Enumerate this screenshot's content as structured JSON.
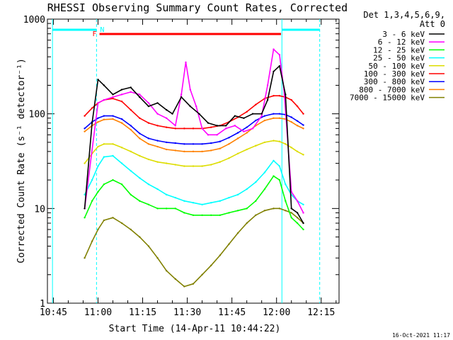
{
  "chart_data": {
    "type": "line",
    "title": "RHESSI Observing Summary Count Rates, Corrected",
    "xlabel": "Start Time (14-Apr-11 10:44:22)",
    "ylabel": "Corrected Count Rate (s⁻¹ detector⁻¹)",
    "y_scale": "log",
    "ylim": [
      1,
      1000
    ],
    "xlim_minutes": [
      -2,
      96
    ],
    "x_ticks": [
      {
        "label": "10:45",
        "minute": 0
      },
      {
        "label": "11:00",
        "minute": 15
      },
      {
        "label": "11:15",
        "minute": 30
      },
      {
        "label": "11:30",
        "minute": 45
      },
      {
        "label": "11:45",
        "minute": 60
      },
      {
        "label": "12:00",
        "minute": 75
      },
      {
        "label": "12:15",
        "minute": 90
      }
    ],
    "y_ticks": [
      {
        "label": "1",
        "value": 1
      },
      {
        "label": "10",
        "value": 10
      },
      {
        "label": "100",
        "value": 100
      },
      {
        "label": "1000",
        "value": 1000
      }
    ],
    "legend": {
      "position": "right",
      "header": [
        "Det 1,3,4,5,6,9,",
        "Att 0"
      ]
    },
    "series": [
      {
        "name": "3 - 6 keV",
        "color": "#000000",
        "x": [
          10.5,
          13.0,
          15.0,
          17.0,
          20.0,
          23.0,
          26.0,
          29.0,
          32.0,
          35.0,
          38.0,
          40.0,
          43.0,
          46.0,
          49.0,
          52.0,
          55.0,
          58.0,
          61.0,
          64.0,
          67.0,
          70.0,
          72.0,
          74.0,
          76.0,
          78.0,
          80.0,
          82.0,
          84.0
        ],
        "y": [
          10,
          80,
          230,
          200,
          160,
          180,
          190,
          150,
          120,
          130,
          110,
          100,
          150,
          120,
          100,
          80,
          75,
          75,
          95,
          90,
          100,
          100,
          140,
          280,
          320,
          160,
          10,
          9,
          7
        ]
      },
      {
        "name": "6 - 12 keV",
        "color": "#ff00ff",
        "x": [
          10.5,
          15.0,
          17.0,
          20.0,
          23.0,
          26.0,
          29.0,
          32.0,
          35.0,
          38.0,
          41.0,
          43.0,
          44.5,
          46.0,
          48.0,
          50.0,
          52.0,
          55.0,
          58.0,
          61.0,
          64.0,
          67.0,
          70.0,
          72.0,
          74.0,
          76.0,
          77.5,
          80.0,
          82.0,
          84.0
        ],
        "y": [
          10,
          130,
          140,
          150,
          160,
          170,
          160,
          130,
          100,
          90,
          75,
          160,
          350,
          180,
          120,
          70,
          60,
          60,
          70,
          75,
          65,
          70,
          95,
          200,
          480,
          420,
          180,
          15,
          12,
          9
        ]
      },
      {
        "name": "12 - 25 keV",
        "color": "#00ff00",
        "x": [
          10.5,
          13.0,
          15.0,
          17.0,
          20.0,
          23.0,
          26.0,
          29.0,
          32.0,
          35.0,
          38.0,
          41.0,
          44.0,
          47.0,
          50.0,
          53.0,
          56.0,
          59.0,
          62.0,
          65.0,
          68.0,
          71.0,
          74.0,
          76.0,
          78.0,
          80.0,
          82.0,
          84.0
        ],
        "y": [
          8,
          12,
          15,
          18,
          20,
          18,
          14,
          12,
          11,
          10,
          10,
          10,
          9,
          8.5,
          8.5,
          8.5,
          8.5,
          9,
          9.5,
          10,
          12,
          16,
          22,
          20,
          12,
          8,
          7,
          6
        ]
      },
      {
        "name": "25 - 50 keV",
        "color": "#00ffff",
        "x": [
          10.5,
          13.0,
          15.0,
          17.0,
          20.0,
          23.0,
          26.0,
          29.0,
          32.0,
          35.0,
          38.0,
          41.0,
          44.0,
          47.0,
          50.0,
          53.0,
          56.0,
          59.0,
          62.0,
          65.0,
          68.0,
          71.0,
          74.0,
          76.0,
          78.0,
          80.0,
          82.0,
          84.0
        ],
        "y": [
          14,
          20,
          28,
          35,
          36,
          30,
          25,
          21,
          18,
          16,
          14,
          13,
          12,
          11.5,
          11,
          11.5,
          12,
          13,
          14,
          16,
          19,
          24,
          32,
          28,
          18,
          14,
          12,
          11
        ]
      },
      {
        "name": "50 - 100 keV",
        "color": "#dddd00",
        "x": [
          10.5,
          13.0,
          15.0,
          17.0,
          20.0,
          23.0,
          26.0,
          29.0,
          32.0,
          35.0,
          38.0,
          41.0,
          44.0,
          47.0,
          50.0,
          53.0,
          56.0,
          59.0,
          62.0,
          65.0,
          68.0,
          71.0,
          74.0,
          76.0,
          78.0,
          80.0,
          82.0,
          84.0
        ],
        "y": [
          30,
          38,
          45,
          48,
          48,
          44,
          40,
          36,
          33,
          31,
          30,
          29,
          28,
          28,
          28,
          29,
          31,
          34,
          38,
          42,
          46,
          50,
          52,
          51,
          48,
          44,
          40,
          37
        ]
      },
      {
        "name": "100 - 300 keV",
        "color": "#ff0000",
        "x": [
          10.5,
          13.0,
          15.0,
          17.0,
          20.0,
          23.0,
          26.0,
          29.0,
          32.0,
          35.0,
          38.0,
          41.0,
          44.0,
          47.0,
          50.0,
          53.0,
          56.0,
          59.0,
          62.0,
          65.0,
          68.0,
          71.0,
          74.0,
          76.0,
          78.0,
          80.0,
          82.0,
          84.0
        ],
        "y": [
          95,
          115,
          130,
          140,
          145,
          135,
          110,
          90,
          80,
          75,
          72,
          70,
          70,
          70,
          70,
          72,
          75,
          82,
          92,
          105,
          125,
          145,
          155,
          155,
          150,
          140,
          120,
          100
        ]
      },
      {
        "name": "300 - 800 keV",
        "color": "#0000ff",
        "x": [
          10.5,
          13.0,
          15.0,
          17.0,
          20.0,
          23.0,
          26.0,
          29.0,
          32.0,
          35.0,
          38.0,
          41.0,
          44.0,
          47.0,
          50.0,
          53.0,
          56.0,
          59.0,
          62.0,
          65.0,
          68.0,
          71.0,
          74.0,
          76.0,
          78.0,
          80.0,
          82.0,
          84.0
        ],
        "y": [
          70,
          82,
          90,
          95,
          95,
          88,
          75,
          62,
          55,
          52,
          50,
          49,
          48,
          48,
          48,
          49,
          51,
          56,
          63,
          72,
          85,
          95,
          100,
          100,
          98,
          92,
          84,
          76
        ]
      },
      {
        "name": "800 - 7000 keV",
        "color": "#ff8000",
        "x": [
          10.5,
          13.0,
          15.0,
          17.0,
          20.0,
          23.0,
          26.0,
          29.0,
          32.0,
          35.0,
          38.0,
          41.0,
          44.0,
          47.0,
          50.0,
          53.0,
          56.0,
          59.0,
          62.0,
          65.0,
          68.0,
          71.0,
          74.0,
          76.0,
          78.0,
          80.0,
          82.0,
          84.0
        ],
        "y": [
          65,
          75,
          82,
          87,
          88,
          80,
          68,
          55,
          48,
          45,
          42,
          41,
          40,
          40,
          40,
          41,
          43,
          48,
          55,
          63,
          75,
          85,
          90,
          90,
          88,
          82,
          75,
          70
        ]
      },
      {
        "name": "7000 - 15000 keV",
        "color": "#808000",
        "x": [
          10.5,
          13.0,
          15.0,
          17.0,
          20.0,
          23.0,
          26.0,
          29.0,
          32.0,
          35.0,
          38.0,
          41.0,
          44.0,
          47.0,
          50.0,
          53.0,
          56.0,
          59.0,
          62.0,
          65.0,
          68.0,
          71.0,
          74.0,
          76.0,
          78.0,
          80.0,
          82.0,
          84.0
        ],
        "y": [
          3,
          4.5,
          6,
          7.5,
          8,
          7,
          6,
          5,
          4,
          3,
          2.2,
          1.8,
          1.5,
          1.6,
          2,
          2.5,
          3.2,
          4.2,
          5.5,
          7,
          8.5,
          9.5,
          10,
          10,
          9.5,
          9,
          8,
          7
        ]
      }
    ],
    "annotations": {
      "flag_f": "F",
      "flag_n": "N",
      "flare_bar_color": "#ff0000",
      "night_bar_color": "#00ffff",
      "flare_bar_minutes": [
        15.5,
        76.5
      ],
      "night_bar_minutes": [
        [
          -0.3,
          14.5
        ],
        [
          76.8,
          89.5
        ]
      ],
      "dashed_lines_minutes": [
        14.5,
        89.5
      ],
      "solid_lines_minutes": [
        -0.3,
        76.8
      ]
    },
    "grid": false,
    "footer_date": "16-Oct-2021 11:17"
  }
}
